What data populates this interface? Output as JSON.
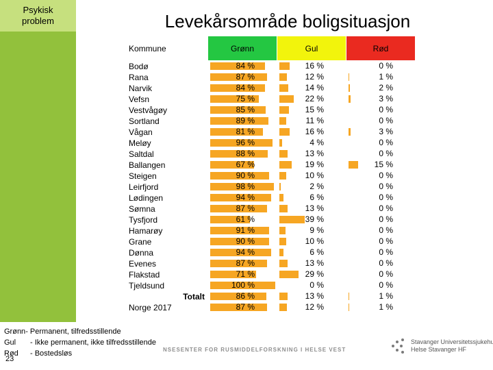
{
  "sidebar": {
    "label_line1": "Psykisk",
    "label_line2": "problem"
  },
  "title": "Levekårsområde boligsituasjon",
  "colors": {
    "green": "#24c742",
    "yellow": "#f2f40c",
    "red": "#ea2a20",
    "bar": "#f6a623",
    "sidebar": "#92c13c"
  },
  "chart_data": {
    "type": "table",
    "title": "Levekårsområde boligsituasjon",
    "columns": [
      "Kommune",
      "Grønn",
      "Gul",
      "Rød"
    ],
    "rows": [
      {
        "name": "Bodø",
        "green": 84,
        "yellow": 16,
        "red": 0
      },
      {
        "name": "Rana",
        "green": 87,
        "yellow": 12,
        "red": 1
      },
      {
        "name": "Narvik",
        "green": 84,
        "yellow": 14,
        "red": 2
      },
      {
        "name": "Vefsn",
        "green": 75,
        "yellow": 22,
        "red": 3
      },
      {
        "name": "Vestvågøy",
        "green": 85,
        "yellow": 15,
        "red": 0
      },
      {
        "name": "Sortland",
        "green": 89,
        "yellow": 11,
        "red": 0
      },
      {
        "name": "Vågan",
        "green": 81,
        "yellow": 16,
        "red": 3
      },
      {
        "name": "Meløy",
        "green": 96,
        "yellow": 4,
        "red": 0
      },
      {
        "name": "Saltdal",
        "green": 88,
        "yellow": 13,
        "red": 0
      },
      {
        "name": "Ballangen",
        "green": 67,
        "yellow": 19,
        "red": 15
      },
      {
        "name": "Steigen",
        "green": 90,
        "yellow": 10,
        "red": 0
      },
      {
        "name": "Leirfjord",
        "green": 98,
        "yellow": 2,
        "red": 0
      },
      {
        "name": "Lødingen",
        "green": 94,
        "yellow": 6,
        "red": 0
      },
      {
        "name": "Sømna",
        "green": 87,
        "yellow": 13,
        "red": 0
      },
      {
        "name": "Tysfjord",
        "green": 61,
        "yellow": 39,
        "red": 0
      },
      {
        "name": "Hamarøy",
        "green": 91,
        "yellow": 9,
        "red": 0
      },
      {
        "name": "Grane",
        "green": 90,
        "yellow": 10,
        "red": 0
      },
      {
        "name": "Dønna",
        "green": 94,
        "yellow": 6,
        "red": 0
      },
      {
        "name": "Evenes",
        "green": 87,
        "yellow": 13,
        "red": 0
      },
      {
        "name": "Flakstad",
        "green": 71,
        "yellow": 29,
        "red": 0
      },
      {
        "name": "Tjeldsund",
        "green": 100,
        "yellow": 0,
        "red": 0
      }
    ],
    "totalt": {
      "label": "Totalt",
      "green": 86,
      "yellow": 13,
      "red": 1
    },
    "norge": {
      "label": "Norge 2017",
      "green": 87,
      "yellow": 12,
      "red": 1
    },
    "unit": "%"
  },
  "legend": [
    {
      "key": "Grønn",
      "text": "- Permanent, tilfredsstillende"
    },
    {
      "key": "Gul",
      "text": "- Ikke permanent, ikke tilfredsstillende"
    },
    {
      "key": "Rød",
      "text": "- Bostedsløs"
    }
  ],
  "slide_number": "23",
  "footer": {
    "org": "NSESENTER FOR RUSMIDDELFORSKNING I HELSE VEST",
    "logo_line1": "Stavanger Universitetssjukehus",
    "logo_line2": "Helse Stavanger HF"
  }
}
